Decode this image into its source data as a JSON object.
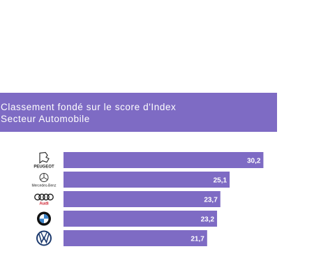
{
  "header": {
    "line1": "Classement fondé sur le score d'Index",
    "line2": "Secteur Automobile"
  },
  "colors": {
    "bar": "#7e6bc4",
    "banner": "#7e6bc4",
    "label": "#ffffff"
  },
  "chart_data": {
    "type": "bar",
    "orientation": "horizontal",
    "categories": [
      "Peugeot",
      "Mercedes-Benz",
      "Audi",
      "BMW",
      "Volkswagen"
    ],
    "logo_text": [
      "PEUGEOT",
      "Mercedes-Benz",
      "Audi",
      "",
      ""
    ],
    "values": [
      30.2,
      25.1,
      23.7,
      23.2,
      21.7
    ],
    "value_labels": [
      "30,2",
      "25,1",
      "23,7",
      "23,2",
      "21,7"
    ],
    "xlim": [
      0,
      33
    ],
    "grid": false,
    "legend": "none"
  }
}
